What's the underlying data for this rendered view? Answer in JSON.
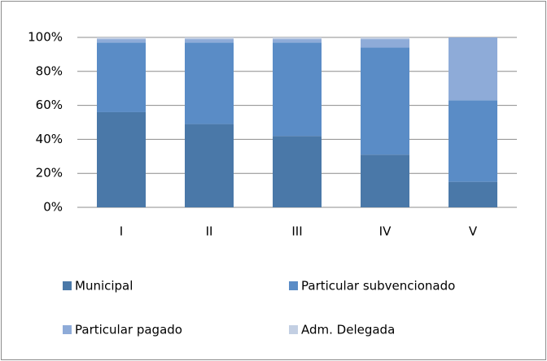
{
  "chart_data": {
    "type": "stacked-bar",
    "categories": [
      "I",
      "II",
      "III",
      "IV",
      "V"
    ],
    "series": [
      {
        "name": "Municipal",
        "color": "#4a78a8",
        "values": [
          56,
          49,
          42,
          31,
          15
        ]
      },
      {
        "name": "Particular subvencionado",
        "color": "#5a8cc6",
        "values": [
          41,
          48,
          55,
          63,
          48
        ]
      },
      {
        "name": "Particular pagado",
        "color": "#8eabd8",
        "values": [
          2,
          2,
          2,
          5,
          37
        ]
      },
      {
        "name": "Adm. Delegada",
        "color": "#c3cfe3",
        "values": [
          1,
          1,
          1,
          1,
          0
        ]
      }
    ],
    "ylim": [
      0,
      100
    ],
    "yticks": [
      {
        "value": 0,
        "label": "0%"
      },
      {
        "value": 20,
        "label": "20%"
      },
      {
        "value": 40,
        "label": "40%"
      },
      {
        "value": 60,
        "label": "60%"
      },
      {
        "value": 80,
        "label": "80%"
      },
      {
        "value": 100,
        "label": "100%"
      }
    ],
    "grid": true,
    "legend": "bottom"
  }
}
